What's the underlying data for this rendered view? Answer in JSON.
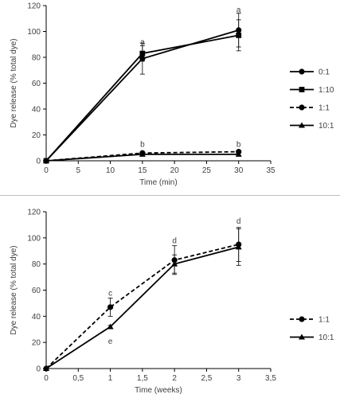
{
  "chart_data": [
    {
      "type": "line",
      "xlabel": "Time (min)",
      "ylabel": "Dye release (% total dye)",
      "xlim": [
        0,
        35
      ],
      "ylim": [
        0,
        120
      ],
      "xticks": [
        "0",
        "5",
        "10",
        "15",
        "20",
        "25",
        "30",
        "35"
      ],
      "yticks": [
        "0",
        "20",
        "40",
        "60",
        "80",
        "100",
        "120"
      ],
      "grid": false,
      "legend_position": "right",
      "series": [
        {
          "name": "0:1",
          "marker": "circle",
          "dash": "solid",
          "x": [
            0,
            15,
            30
          ],
          "y": [
            0,
            79,
            101
          ],
          "err": [
            0,
            12,
            13
          ]
        },
        {
          "name": "1:10",
          "marker": "square",
          "dash": "solid",
          "x": [
            0,
            15,
            30
          ],
          "y": [
            0,
            83,
            97
          ],
          "err": [
            0,
            6,
            12
          ]
        },
        {
          "name": "1:1",
          "marker": "circle",
          "dash": "dashed",
          "x": [
            0,
            15,
            30
          ],
          "y": [
            0,
            6,
            7
          ],
          "err": [
            0,
            1,
            1
          ]
        },
        {
          "name": "10:1",
          "marker": "triangle",
          "dash": "solid",
          "x": [
            0,
            15,
            30
          ],
          "y": [
            0,
            5,
            5
          ],
          "err": [
            0,
            1,
            1
          ]
        }
      ],
      "annotations": [
        {
          "text": "a",
          "x": 15,
          "y": 92
        },
        {
          "text": "a",
          "x": 30,
          "y": 117
        },
        {
          "text": "b",
          "x": 15,
          "y": 13
        },
        {
          "text": "b",
          "x": 30,
          "y": 13
        }
      ]
    },
    {
      "type": "line",
      "xlabel": "Time (weeks)",
      "ylabel": "Dye release (% total dye)",
      "xlim": [
        0,
        3.5
      ],
      "ylim": [
        0,
        120
      ],
      "xticks": [
        "0",
        "0,5",
        "1",
        "1,5",
        "2",
        "2,5",
        "3",
        "3,5"
      ],
      "yticks": [
        "0",
        "20",
        "40",
        "60",
        "80",
        "100",
        "120"
      ],
      "grid": false,
      "legend_position": "right",
      "series": [
        {
          "name": "1:1",
          "marker": "circle",
          "dash": "dashed",
          "x": [
            0,
            1,
            2,
            3
          ],
          "y": [
            0,
            47,
            83,
            95
          ],
          "err": [
            0,
            7,
            11,
            13
          ]
        },
        {
          "name": "10:1",
          "marker": "triangle",
          "dash": "solid",
          "x": [
            0,
            1,
            2,
            3
          ],
          "y": [
            0,
            32,
            80,
            93
          ],
          "err": [
            0,
            1,
            7,
            14
          ]
        }
      ],
      "annotations": [
        {
          "text": "c",
          "x": 1,
          "y": 58
        },
        {
          "text": "e",
          "x": 1,
          "y": 21
        },
        {
          "text": "d",
          "x": 2,
          "y": 98
        },
        {
          "text": "d",
          "x": 3,
          "y": 113
        }
      ]
    }
  ]
}
